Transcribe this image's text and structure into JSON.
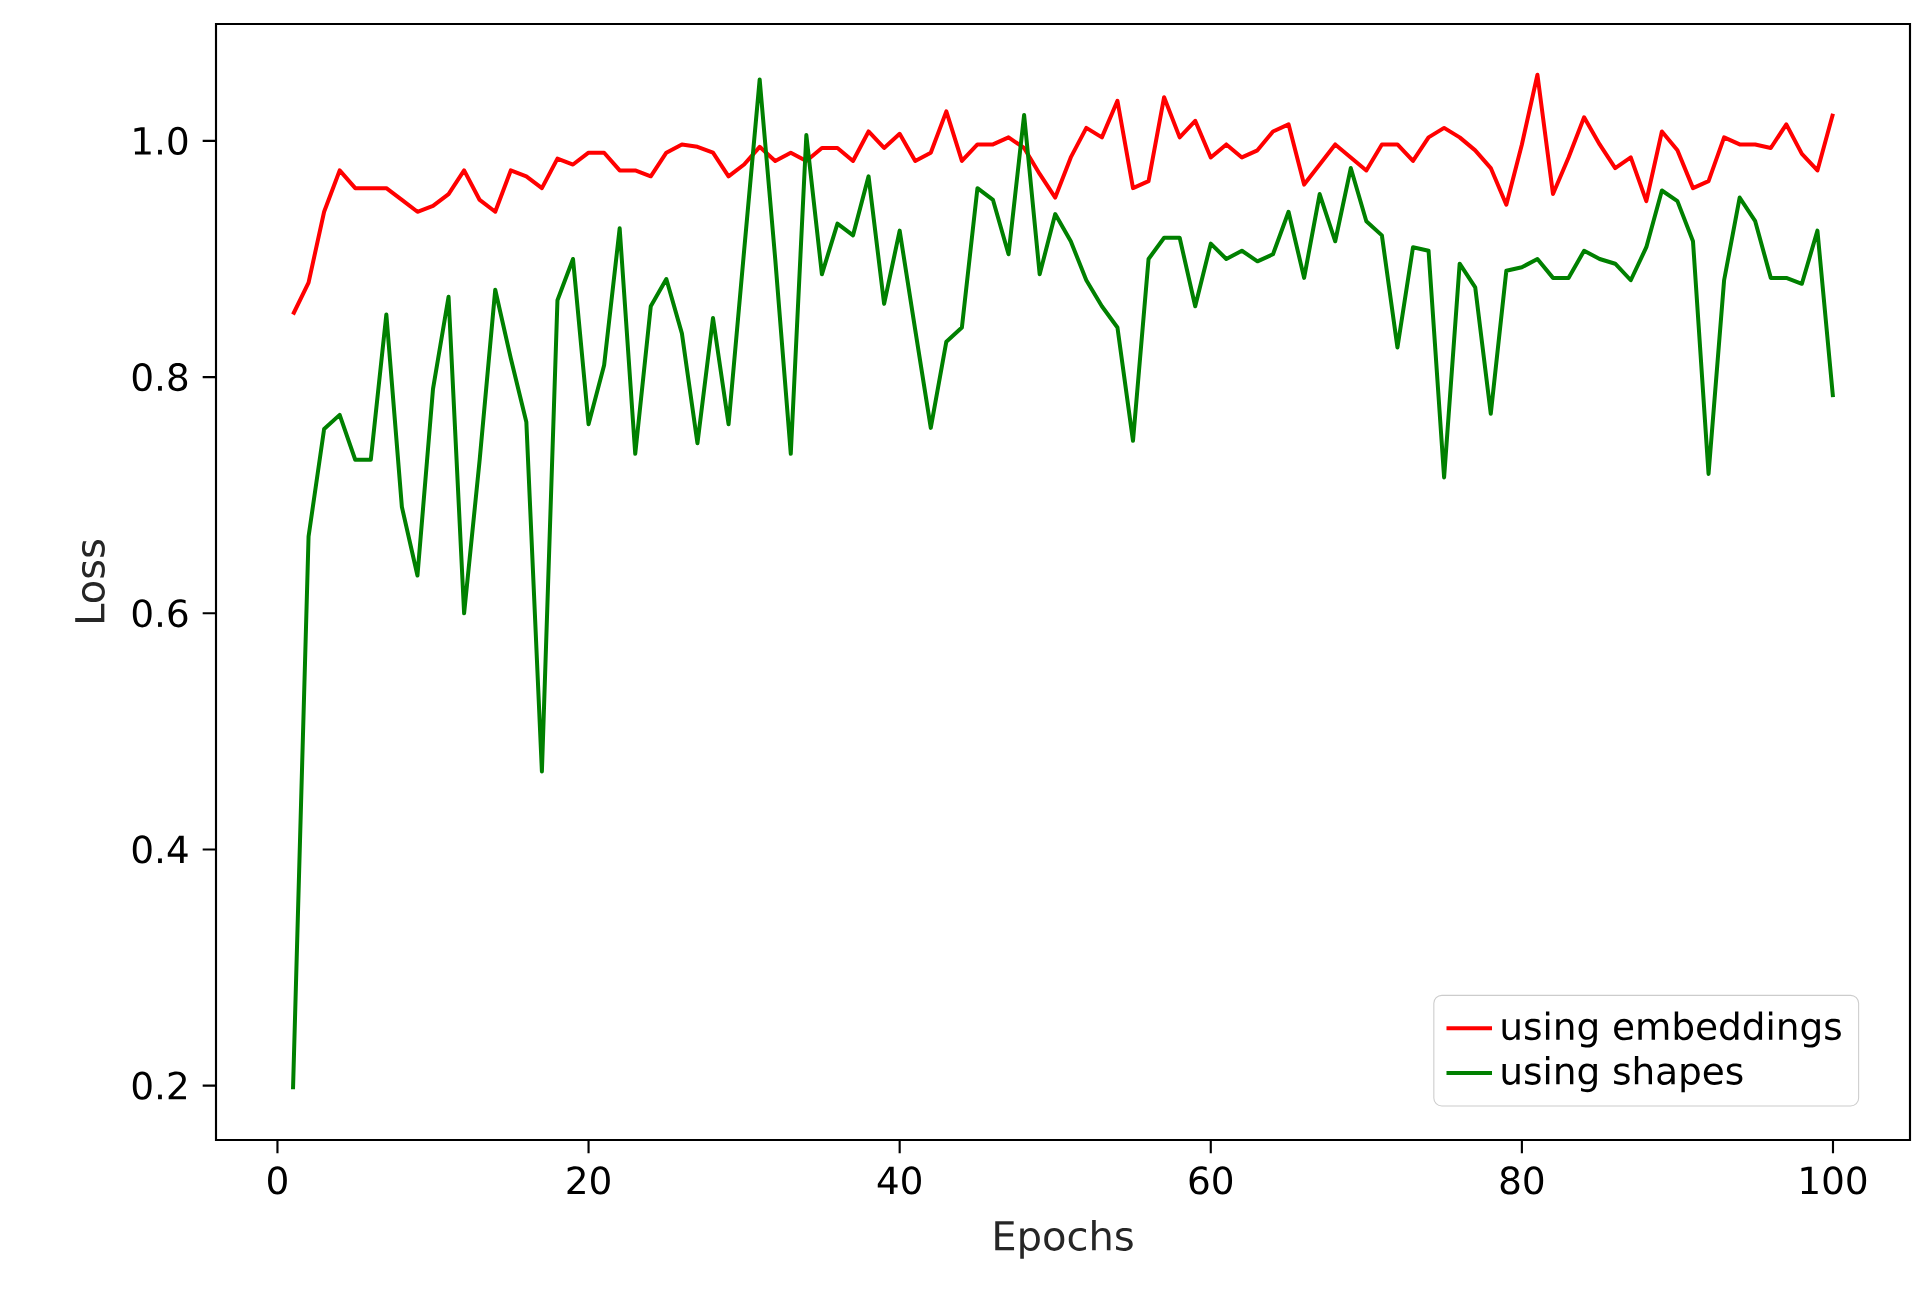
{
  "chart_data": {
    "type": "line",
    "xlabel": "Epochs",
    "ylabel": "Loss",
    "xlim": [
      -3.95,
      104.95
    ],
    "ylim": [
      0.154,
      1.099
    ],
    "xticks": [
      0,
      20,
      40,
      60,
      80,
      100
    ],
    "yticks": [
      0.2,
      0.4,
      0.6,
      0.8,
      {
        "value": 1.0,
        "label": "1.0"
      }
    ],
    "legend": "bottom right",
    "grid": false,
    "marker": "none",
    "line_style": "solid",
    "x": [
      1,
      2,
      3,
      4,
      5,
      6,
      7,
      8,
      9,
      10,
      11,
      12,
      13,
      14,
      15,
      16,
      17,
      18,
      19,
      20,
      21,
      22,
      23,
      24,
      25,
      26,
      27,
      28,
      29,
      30,
      31,
      32,
      33,
      34,
      35,
      36,
      37,
      38,
      39,
      40,
      41,
      42,
      43,
      44,
      45,
      46,
      47,
      48,
      49,
      50,
      51,
      52,
      53,
      54,
      55,
      56,
      57,
      58,
      59,
      60,
      61,
      62,
      63,
      64,
      65,
      66,
      67,
      68,
      69,
      70,
      71,
      72,
      73,
      74,
      75,
      76,
      77,
      78,
      79,
      80,
      81,
      82,
      83,
      84,
      85,
      86,
      87,
      88,
      89,
      90,
      91,
      92,
      93,
      94,
      95,
      96,
      97,
      98,
      99,
      100
    ],
    "series": [
      {
        "name": "using embeddings",
        "color": "#ff0000",
        "values": [
          0.853,
          0.88,
          0.94,
          0.975,
          0.96,
          0.96,
          0.96,
          0.95,
          0.94,
          0.945,
          0.955,
          0.975,
          0.95,
          0.94,
          0.975,
          0.97,
          0.96,
          0.985,
          0.98,
          0.99,
          0.99,
          0.975,
          0.975,
          0.97,
          0.99,
          0.997,
          0.995,
          0.99,
          0.97,
          0.98,
          0.995,
          0.983,
          0.99,
          0.983,
          0.994,
          0.994,
          0.983,
          1.008,
          0.994,
          1.006,
          0.983,
          0.99,
          1.025,
          0.983,
          0.997,
          0.997,
          1.003,
          0.994,
          0.972,
          0.952,
          0.986,
          1.011,
          1.003,
          1.034,
          0.96,
          0.966,
          1.037,
          1.003,
          1.017,
          0.986,
          0.997,
          0.986,
          0.992,
          1.008,
          1.014,
          0.963,
          0.98,
          0.997,
          0.986,
          0.975,
          0.997,
          0.997,
          0.983,
          1.003,
          1.011,
          1.003,
          0.992,
          0.977,
          0.946,
          0.997,
          1.056,
          0.955,
          0.986,
          1.02,
          0.997,
          0.977,
          0.986,
          0.949,
          1.008,
          0.992,
          0.96,
          0.966,
          1.003,
          0.997,
          0.997,
          0.994,
          1.014,
          0.989,
          0.975,
          1.023
        ]
      },
      {
        "name": "using shapes",
        "color": "#008000",
        "values": [
          0.197,
          0.665,
          0.756,
          0.768,
          0.73,
          0.73,
          0.853,
          0.69,
          0.632,
          0.79,
          0.868,
          0.6,
          0.73,
          0.874,
          0.816,
          0.762,
          0.466,
          0.865,
          0.9,
          0.76,
          0.81,
          0.926,
          0.735,
          0.86,
          0.883,
          0.837,
          0.744,
          0.85,
          0.76,
          0.907,
          1.052,
          0.9,
          0.735,
          1.005,
          0.887,
          0.93,
          0.92,
          0.97,
          0.862,
          0.924,
          0.84,
          0.757,
          0.83,
          0.842,
          0.96,
          0.95,
          0.904,
          1.022,
          0.887,
          0.938,
          0.915,
          0.882,
          0.86,
          0.842,
          0.746,
          0.9,
          0.918,
          0.918,
          0.86,
          0.913,
          0.9,
          0.907,
          0.898,
          0.904,
          0.94,
          0.884,
          0.955,
          0.915,
          0.977,
          0.932,
          0.92,
          0.825,
          0.91,
          0.907,
          0.715,
          0.896,
          0.876,
          0.769,
          0.89,
          0.893,
          0.9,
          0.884,
          0.884,
          0.907,
          0.9,
          0.896,
          0.882,
          0.91,
          0.958,
          0.949,
          0.915,
          0.718,
          0.882,
          0.952,
          0.932,
          0.884,
          0.884,
          0.879,
          0.924,
          0.783
        ]
      }
    ]
  }
}
